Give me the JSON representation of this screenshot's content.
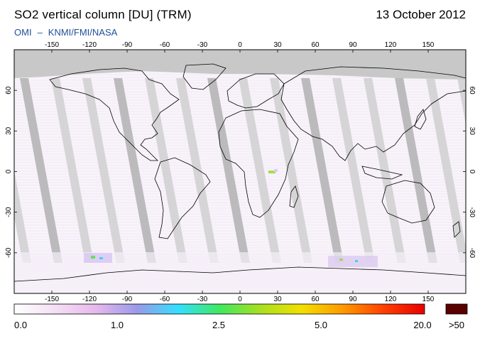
{
  "header": {
    "title": "SO2 vertical column [DU] (TRM)",
    "date": "13 October 2012",
    "credit_left": "OMI",
    "credit_sep": "–",
    "credit_right": "KNMI/FMI/NASA"
  },
  "map": {
    "lon_ticks": [
      -150,
      -120,
      -90,
      -60,
      -30,
      0,
      30,
      60,
      90,
      120,
      150
    ],
    "lat_ticks": [
      60,
      30,
      0,
      -30,
      -60
    ],
    "lon_range": [
      -180,
      180
    ],
    "lat_range": [
      -90,
      90
    ]
  },
  "colorbar": {
    "labels": [
      "0.0",
      "1.0",
      "2.5",
      "5.0",
      "20.0"
    ],
    "overflow_label": ">50",
    "colors": [
      "#ffffff",
      "#f4e0f4",
      "#e6b8ec",
      "#9a9ae8",
      "#33e0ff",
      "#40e860",
      "#a8e020",
      "#f2e000",
      "#ff9a00",
      "#ff4000",
      "#e80000"
    ],
    "overflow_color": "#5a0000"
  }
}
